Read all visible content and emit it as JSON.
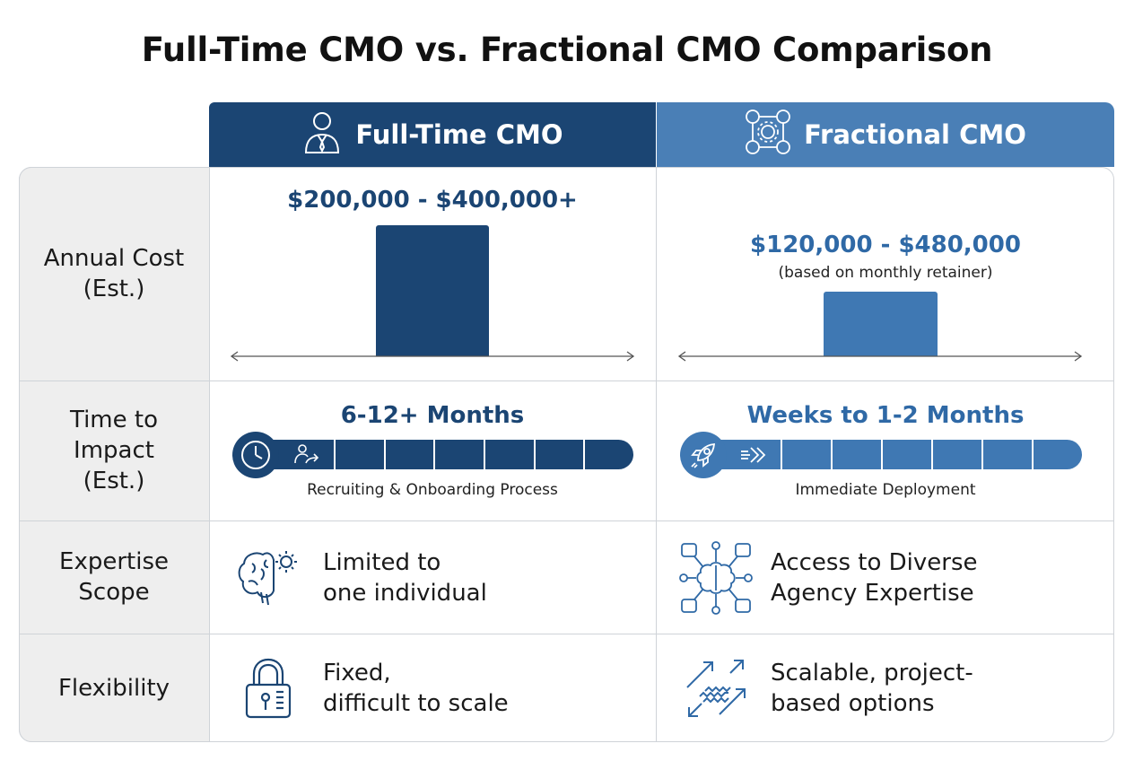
{
  "title": "Full-Time CMO vs. Fractional CMO Comparison",
  "columns": {
    "full_time": {
      "name": "Full-Time CMO",
      "icon": "businessman-icon",
      "color": "#1b4573"
    },
    "fractional": {
      "name": "Fractional CMO",
      "icon": "team-network-icon",
      "color": "#4a7fb6"
    }
  },
  "rows": {
    "annual_cost": {
      "label_line1": "Annual Cost",
      "label_line2": "(Est.)",
      "full_time": {
        "range": "$200,000 - $400,000+",
        "bar_level": 1.0
      },
      "fractional": {
        "range": "$120,000 - $480,000",
        "note": "(based on monthly retainer)",
        "bar_level": 0.49
      }
    },
    "time_to_impact": {
      "label_line1": "Time to",
      "label_line2": "Impact",
      "label_line3": "(Est.)",
      "full_time": {
        "value": "6-12+ Months",
        "caption": "Recruiting & Onboarding Process",
        "icons": [
          "clock-icon",
          "person-arrow-icon"
        ]
      },
      "fractional": {
        "value": "Weeks to 1-2 Months",
        "caption": "Immediate Deployment",
        "icons": [
          "rocket-icon",
          "fast-forward-arrows-icon"
        ]
      }
    },
    "expertise_scope": {
      "label_line1": "Expertise",
      "label_line2": "Scope",
      "full_time": {
        "line1": "Limited to",
        "line2": "one individual",
        "icon": "brain-gear-icon"
      },
      "fractional": {
        "line1": "Access to Diverse",
        "line2": "Agency Expertise",
        "icon": "brain-network-icon"
      }
    },
    "flexibility": {
      "label": "Flexibility",
      "full_time": {
        "line1": "Fixed,",
        "line2": "difficult to scale",
        "icon": "padlock-icon"
      },
      "fractional": {
        "line1": "Scalable, project-",
        "line2": "based options",
        "icon": "scaling-arrows-icon"
      }
    }
  }
}
